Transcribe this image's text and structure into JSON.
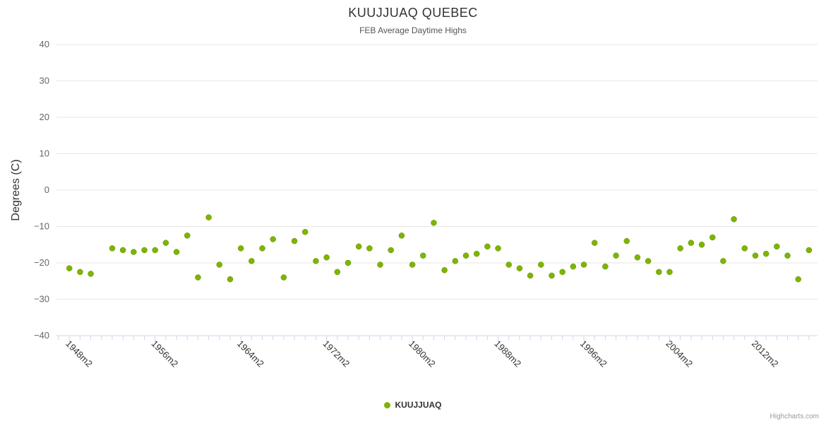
{
  "title": "KUUJJUAQ QUEBEC",
  "subtitle": "FEB Average Daytime Highs",
  "credit": "Highcharts.com",
  "legend": {
    "label": "KUUJJUAQ",
    "marker_color": "#7db500"
  },
  "chart_data": {
    "type": "scatter",
    "title": "KUUJJUAQ QUEBEC",
    "subtitle": "FEB Average Daytime Highs",
    "xlabel": "",
    "ylabel": "Degrees (C)",
    "ylim": [
      -40,
      40
    ],
    "yticks": [
      -40,
      -30,
      -20,
      -10,
      0,
      10,
      20,
      30,
      40
    ],
    "xlim": [
      1946.8,
      2017.8
    ],
    "xtick_years": [
      1948,
      1956,
      1964,
      1972,
      1980,
      1988,
      1996,
      2004,
      2012
    ],
    "xtick_labels": [
      "1948m2",
      "1956m2",
      "1964m2",
      "1972m2",
      "1980m2",
      "1988m2",
      "1996m2",
      "2004m2",
      "2012m2"
    ],
    "grid": "horizontal",
    "legend_position": "bottom",
    "colors": {
      "point_fill": "#7db500",
      "point_stroke": "#5d8a00",
      "gridline": "#e6e6e6",
      "axis_line": "#ccd6eb",
      "tick": "#ccd6eb",
      "axis_label": "#666666",
      "axis_title": "#333333"
    },
    "series": [
      {
        "name": "KUUJJUAQ",
        "color": "#7db500",
        "points": [
          [
            1948,
            -21.5
          ],
          [
            1949,
            -22.5
          ],
          [
            1950,
            -23
          ],
          [
            1952,
            -16
          ],
          [
            1953,
            -16.5
          ],
          [
            1954,
            -17
          ],
          [
            1955,
            -16.5
          ],
          [
            1956,
            -16.5
          ],
          [
            1957,
            -14.5
          ],
          [
            1958,
            -17
          ],
          [
            1959,
            -12.5
          ],
          [
            1960,
            -24
          ],
          [
            1961,
            -7.5
          ],
          [
            1962,
            -20.5
          ],
          [
            1963,
            -24.5
          ],
          [
            1964,
            -16
          ],
          [
            1965,
            -19.5
          ],
          [
            1966,
            -16
          ],
          [
            1967,
            -13.5
          ],
          [
            1968,
            -24
          ],
          [
            1969,
            -14
          ],
          [
            1970,
            -11.5
          ],
          [
            1971,
            -19.5
          ],
          [
            1972,
            -18.5
          ],
          [
            1973,
            -22.5
          ],
          [
            1974,
            -20
          ],
          [
            1975,
            -15.5
          ],
          [
            1976,
            -16
          ],
          [
            1977,
            -20.5
          ],
          [
            1978,
            -16.5
          ],
          [
            1979,
            -12.5
          ],
          [
            1980,
            -20.5
          ],
          [
            1981,
            -18
          ],
          [
            1982,
            -9
          ],
          [
            1983,
            -22
          ],
          [
            1984,
            -19.5
          ],
          [
            1985,
            -18
          ],
          [
            1986,
            -17.5
          ],
          [
            1987,
            -15.5
          ],
          [
            1988,
            -16
          ],
          [
            1989,
            -20.5
          ],
          [
            1990,
            -21.5
          ],
          [
            1991,
            -23.5
          ],
          [
            1992,
            -20.5
          ],
          [
            1993,
            -23.5
          ],
          [
            1994,
            -22.5
          ],
          [
            1995,
            -21
          ],
          [
            1996,
            -20.5
          ],
          [
            1997,
            -14.5
          ],
          [
            1998,
            -21
          ],
          [
            1999,
            -18
          ],
          [
            2000,
            -14
          ],
          [
            2001,
            -18.5
          ],
          [
            2002,
            -19.5
          ],
          [
            2003,
            -22.5
          ],
          [
            2004,
            -22.5
          ],
          [
            2005,
            -16
          ],
          [
            2006,
            -14.5
          ],
          [
            2007,
            -15
          ],
          [
            2008,
            -13
          ],
          [
            2009,
            -19.5
          ],
          [
            2010,
            -8
          ],
          [
            2011,
            -16
          ],
          [
            2012,
            -18
          ],
          [
            2013,
            -17.5
          ],
          [
            2014,
            -15.5
          ],
          [
            2015,
            -18
          ],
          [
            2016,
            -24.5
          ],
          [
            2017,
            -16.5
          ]
        ]
      }
    ]
  }
}
